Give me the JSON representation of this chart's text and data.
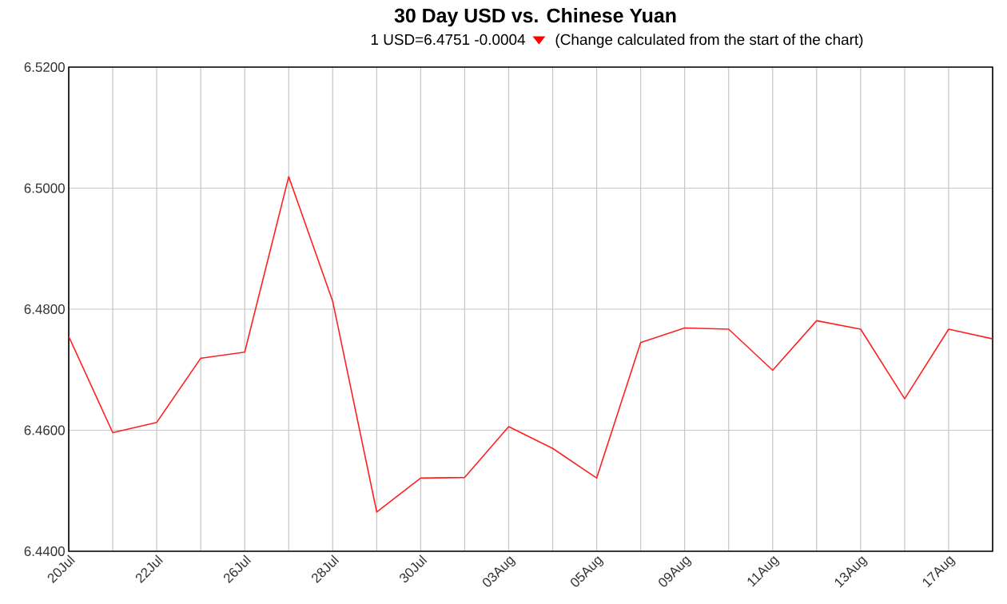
{
  "chart_data": {
    "type": "line",
    "title": "30 Day USD vs. Chinese Yuan",
    "subtitle": "1 USD=6.4751  -0.0004",
    "annotations": [
      "(Change calculated from the start of the chart)"
    ],
    "categories": [
      "20Jul",
      null,
      "22Jul",
      null,
      "26Jul",
      null,
      "28Jul",
      null,
      "30Jul",
      null,
      "03Aug",
      null,
      "05Aug",
      null,
      "09Aug",
      null,
      "11Aug",
      null,
      "13Aug",
      null,
      "17Aug",
      null
    ],
    "series": [
      {
        "color": "#ff2020",
        "values": [
          6.4755,
          6.4596,
          6.4613,
          6.4719,
          6.4729,
          6.5019,
          6.4813,
          6.4465,
          6.4521,
          6.4522,
          6.4606,
          6.457,
          6.4521,
          6.4745,
          6.4769,
          6.4767,
          6.4699,
          6.4781,
          6.4767,
          6.4652,
          6.4767,
          6.4751
        ]
      }
    ],
    "ylim": [
      6.44,
      6.52
    ],
    "yticks": [
      {
        "value": 6.44,
        "label": "6.4400"
      },
      {
        "value": 6.46,
        "label": "6.4600"
      },
      {
        "value": 6.48,
        "label": "6.4800"
      },
      {
        "value": 6.5,
        "label": "6.5000"
      },
      {
        "value": 6.52,
        "label": "6.5200"
      }
    ],
    "grid": true,
    "marker": "none",
    "line_style": "solid"
  }
}
